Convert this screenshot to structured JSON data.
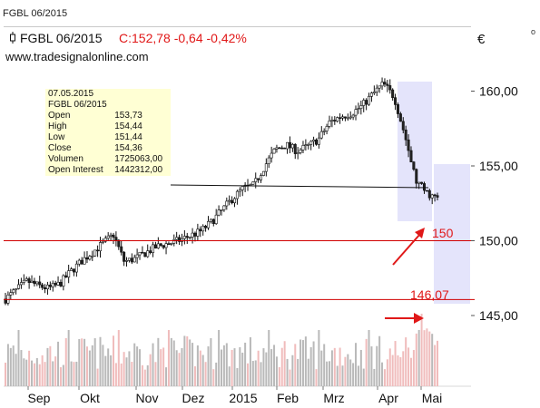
{
  "window": {
    "tab_label": "FGBL 06/2015",
    "corner_mark": "o"
  },
  "header": {
    "symbol": "FGBL 06/2015",
    "change_text": "C:152,78 -0,64 -0,42%",
    "website": "www.tradesignalonline.com",
    "currency": "€"
  },
  "info_panel": {
    "date": "07.05.2015",
    "symbol": "FGBL 06/2015",
    "rows": [
      {
        "label": "Open",
        "value": "153,73"
      },
      {
        "label": "High",
        "value": "154,44"
      },
      {
        "label": "Low",
        "value": "151,44"
      },
      {
        "label": "Close",
        "value": "154,36"
      },
      {
        "label": "Volumen",
        "value": "1725063,00"
      },
      {
        "label": "Open Interest",
        "value": "1442312,00"
      }
    ]
  },
  "annotations": {
    "level_150": "150",
    "level_146": "146,07"
  },
  "colors": {
    "up_candle": "#ffffff",
    "down_candle": "#222222",
    "level_line": "#d00000",
    "annotation": "#e01818",
    "highlight": "#e4e4fb",
    "volume_up": "#b9b9b9",
    "volume_down": "#f0bcbc"
  },
  "chart_data": {
    "type": "candlestick",
    "y_ticks": [
      "145,00",
      "150,00",
      "155,00",
      "160,00"
    ],
    "y_range": [
      140.3,
      163.3
    ],
    "x_ticks": [
      "Sep",
      "Okt",
      "Nov",
      "Dez",
      "2015",
      "Feb",
      "Mrz",
      "Apr",
      "Mai"
    ],
    "horizontal_levels": [
      150.0,
      146.07
    ],
    "close_series": [
      146.1,
      146.7,
      147.3,
      147.0,
      146.8,
      147.1,
      147.9,
      148.6,
      149.2,
      149.8,
      150.4,
      148.6,
      148.8,
      149.2,
      149.6,
      149.8,
      150.0,
      150.3,
      150.6,
      151.2,
      152.0,
      152.8,
      153.5,
      153.7,
      155.0,
      156.1,
      156.4,
      156.0,
      156.3,
      156.8,
      157.9,
      158.3,
      158.5,
      159.0,
      159.8,
      160.5,
      159.6,
      157.0,
      154.0,
      153.2,
      152.8
    ],
    "candle_count": 165,
    "volume_ranges": {
      "typical": [
        0.2,
        0.45
      ],
      "spike_peak": 1.0
    }
  }
}
